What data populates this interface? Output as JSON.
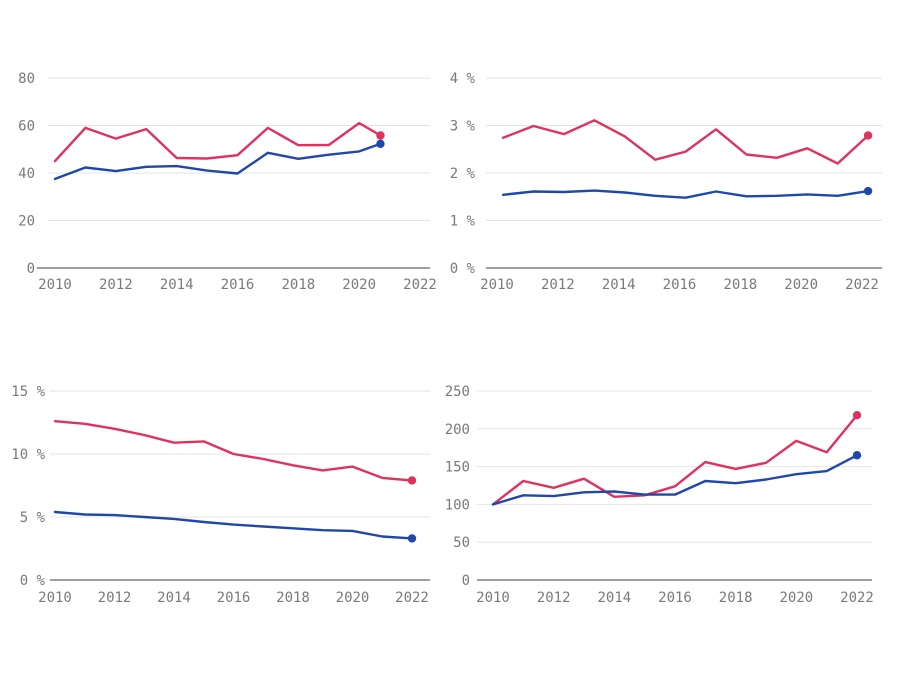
{
  "colors": {
    "pink": "#e0325f",
    "blue": "#1f48a8",
    "grid": "#e4e4e4",
    "axis": "#666666",
    "tick": "#7a7a7a"
  },
  "chart_data": [
    {
      "id": "top-left",
      "type": "line",
      "xlim": [
        2010,
        2022.6
      ],
      "ylim": [
        0,
        80
      ],
      "xticks": [
        "2010",
        "2012",
        "2014",
        "2016",
        "2018",
        "2020",
        "2022"
      ],
      "yticks": [
        "0",
        "20",
        "40",
        "60",
        "80"
      ],
      "grid": true,
      "series": [
        {
          "color": "#e0325f",
          "x": [
            2010,
            2011,
            2012,
            2013,
            2014,
            2015,
            2016,
            2017,
            2018,
            2019,
            2020,
            2020.7
          ],
          "y": [
            45,
            59,
            54.5,
            58.5,
            46.3,
            46.1,
            47.5,
            59,
            51.7,
            51.8,
            61,
            55.8
          ]
        },
        {
          "color": "#1f48a8",
          "x": [
            2010,
            2011,
            2012,
            2013,
            2014,
            2015,
            2016,
            2017,
            2018,
            2019,
            2020,
            2020.7
          ],
          "y": [
            37.5,
            42.3,
            40.8,
            42.6,
            42.9,
            41,
            39.8,
            48.5,
            46,
            47.7,
            49.1,
            52.3
          ]
        }
      ]
    },
    {
      "id": "top-right",
      "type": "line",
      "xlim": [
        2010,
        2022.6
      ],
      "ylim": [
        0,
        4
      ],
      "xticks": [
        "2010",
        "2012",
        "2014",
        "2016",
        "2018",
        "2020",
        "2022"
      ],
      "yticks": [
        "0 %",
        "1 %",
        "2 %",
        "3 %",
        "4 %"
      ],
      "grid": true,
      "series": [
        {
          "color": "#e0325f",
          "x": [
            2010.2,
            2011.2,
            2012.2,
            2013.2,
            2014.2,
            2015.2,
            2016.2,
            2017.2,
            2018.2,
            2019.2,
            2020.2,
            2021.2,
            2022.2
          ],
          "y": [
            2.74,
            2.99,
            2.82,
            3.11,
            2.77,
            2.28,
            2.45,
            2.92,
            2.39,
            2.32,
            2.52,
            2.2,
            2.79
          ]
        },
        {
          "color": "#1f48a8",
          "x": [
            2010.2,
            2011.2,
            2012.2,
            2013.2,
            2014.2,
            2015.2,
            2016.2,
            2017.2,
            2018.2,
            2019.2,
            2020.2,
            2021.2,
            2022.2
          ],
          "y": [
            1.54,
            1.61,
            1.6,
            1.63,
            1.59,
            1.52,
            1.48,
            1.61,
            1.51,
            1.52,
            1.55,
            1.52,
            1.62
          ]
        }
      ]
    },
    {
      "id": "bottom-left",
      "type": "line",
      "xlim": [
        2010,
        2022.6
      ],
      "ylim": [
        0,
        15
      ],
      "xticks": [
        "2010",
        "2012",
        "2014",
        "2016",
        "2018",
        "2020",
        "2022"
      ],
      "yticks": [
        "0 %",
        "5 %",
        "10 %",
        "15 %"
      ],
      "grid": true,
      "series": [
        {
          "color": "#e0325f",
          "x": [
            2010,
            2011,
            2012,
            2013,
            2014,
            2015,
            2016,
            2017,
            2018,
            2019,
            2020,
            2021,
            2022
          ],
          "y": [
            12.6,
            12.4,
            12.0,
            11.5,
            10.9,
            11.0,
            10.0,
            9.6,
            9.1,
            8.7,
            9.0,
            8.1,
            7.9
          ]
        },
        {
          "color": "#1f48a8",
          "x": [
            2010,
            2011,
            2012,
            2013,
            2014,
            2015,
            2016,
            2017,
            2018,
            2019,
            2020,
            2021,
            2022
          ],
          "y": [
            5.4,
            5.2,
            5.15,
            5.0,
            4.85,
            4.6,
            4.4,
            4.25,
            4.1,
            3.95,
            3.9,
            3.45,
            3.3
          ]
        }
      ]
    },
    {
      "id": "bottom-right",
      "type": "line",
      "xlim": [
        2010,
        2022.6
      ],
      "ylim": [
        0,
        250
      ],
      "xticks": [
        "2010",
        "2012",
        "2014",
        "2016",
        "2018",
        "2020",
        "2022"
      ],
      "yticks": [
        "0",
        "50",
        "100",
        "150",
        "200",
        "250"
      ],
      "grid": true,
      "series": [
        {
          "color": "#e0325f",
          "x": [
            2010,
            2011,
            2012,
            2013,
            2014,
            2015,
            2016,
            2017,
            2018,
            2019,
            2020,
            2021,
            2022
          ],
          "y": [
            100,
            131,
            122,
            134,
            110,
            112,
            124,
            156,
            147,
            155,
            184,
            169,
            218
          ]
        },
        {
          "color": "#1f48a8",
          "x": [
            2010,
            2011,
            2012,
            2013,
            2014,
            2015,
            2016,
            2017,
            2018,
            2019,
            2020,
            2021,
            2022
          ],
          "y": [
            100,
            112,
            111,
            116,
            117,
            113,
            113,
            131,
            128,
            133,
            140,
            144,
            165
          ]
        }
      ]
    }
  ]
}
